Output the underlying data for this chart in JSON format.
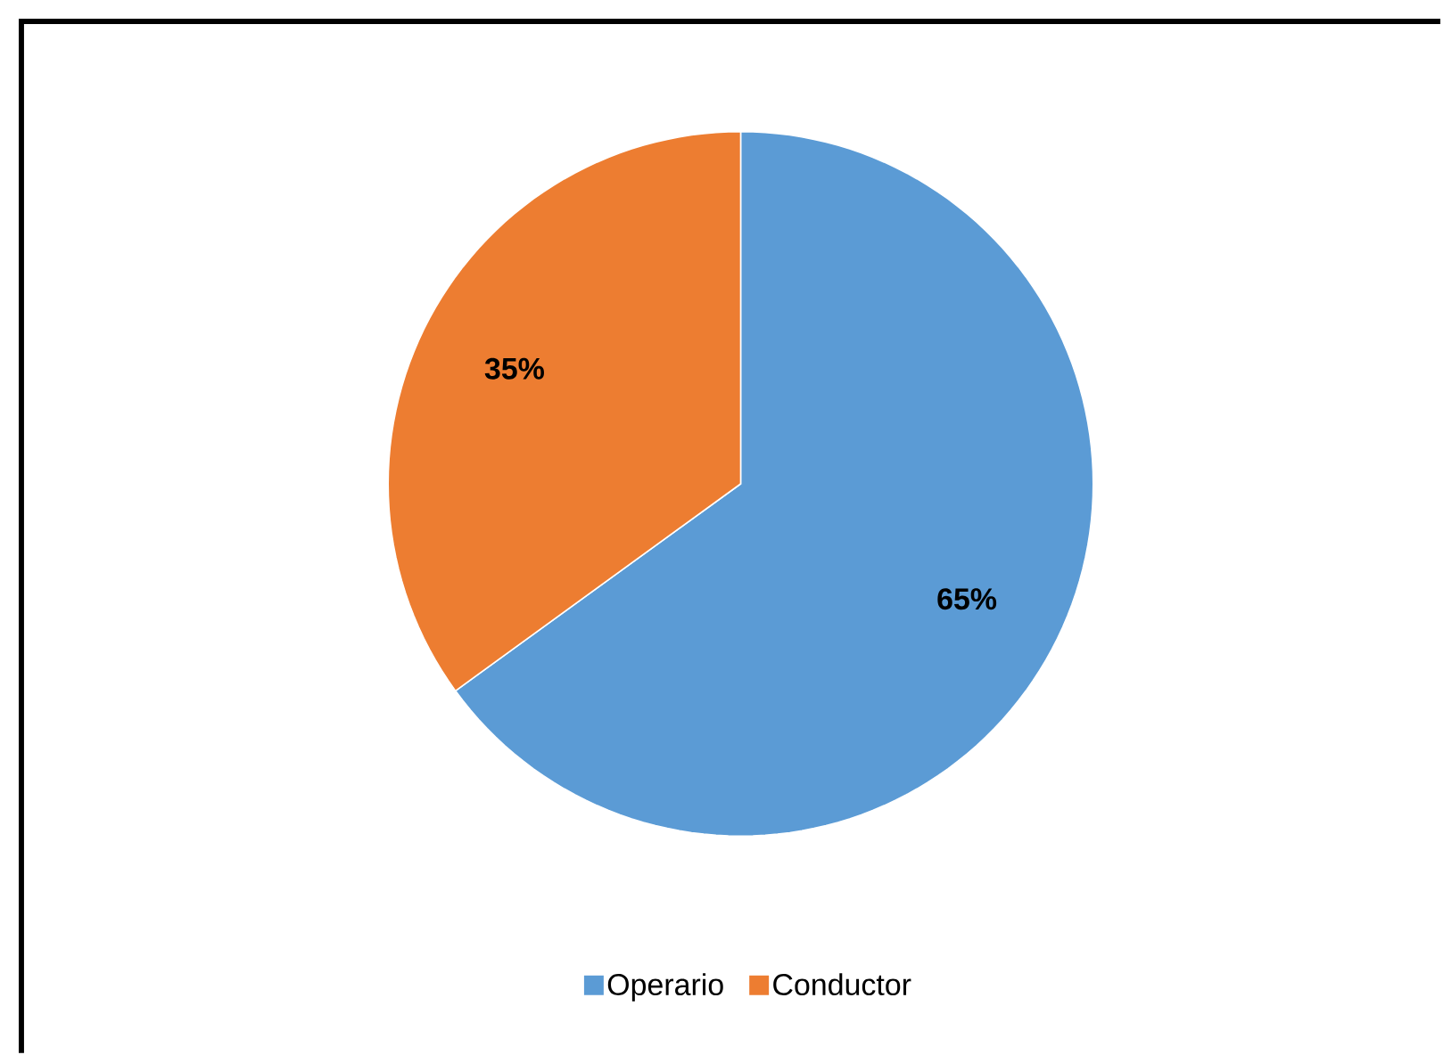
{
  "chart_data": {
    "type": "pie",
    "categories": [
      "Operario",
      "Conductor"
    ],
    "values": [
      65,
      35
    ],
    "colors": [
      "#5b9bd5",
      "#ed7d31"
    ],
    "value_labels": [
      "65%",
      "35%"
    ],
    "legend": "bottom"
  }
}
